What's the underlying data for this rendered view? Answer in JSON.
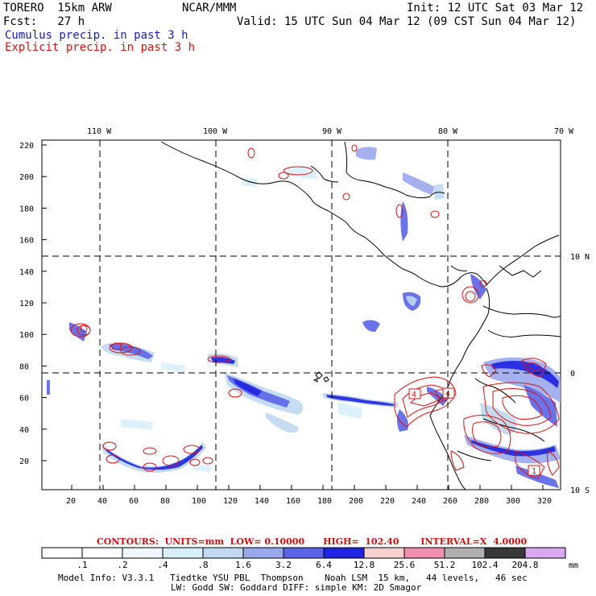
{
  "header": {
    "model": "TORERO  15km ARW",
    "center": "NCAR/MMM",
    "init": "Init: 12 UTC Sat 03 Mar 12",
    "fcst": "Fcst:   27 h",
    "valid": "Valid: 15 UTC Sun 04 Mar 12 (09 CST Sun 04 Mar 12)",
    "field1": "Cumulus precip. in past 3 h",
    "field2": "Explicit precip. in past 3 h"
  },
  "map": {
    "lon_labels": [
      "110 W",
      "100 W",
      "90 W",
      "80 W",
      "70 W"
    ],
    "lat_labels": [
      "10 N",
      "0",
      "10 S"
    ],
    "y_ticks": [
      "220",
      "200",
      "180",
      "160",
      "140",
      "120",
      "100",
      "80",
      "60",
      "40",
      "20"
    ],
    "x_ticks": [
      "20",
      "40",
      "60",
      "80",
      "100",
      "120",
      "140",
      "160",
      "180",
      "200",
      "220",
      "240",
      "260",
      "280",
      "300",
      "320"
    ],
    "contour_labels": [
      "4",
      "4",
      "1"
    ]
  },
  "contours": {
    "text": "CONTOURS:  UNITS=mm  LOW= 0.10000      HIGH=  102.40       INTERVAL=X  4.0000"
  },
  "colorbar": {
    "labels": [
      ".1",
      ".2",
      ".4",
      ".8",
      "1.6",
      "3.2",
      "6.4",
      "12.8",
      "25.6",
      "51.2",
      "102.4",
      "204.8"
    ],
    "unit": "mm",
    "colors": [
      "#ffffff",
      "#ffffff",
      "#eef7ff",
      "#d8f0f8",
      "#c0d8f0",
      "#9aa8ec",
      "#5a64e8",
      "#1e24e0",
      "#f8d0d0",
      "#f090b0",
      "#b0b0b0",
      "#383838",
      "#d8a8f0"
    ]
  },
  "model_info": {
    "line1": "Model Info: V3.3.1   Tiedtke YSU PBL  Thompson    Noah LSM  15 km,   44 levels,   46 sec",
    "line2": "LW: Godd SW: Goddard DIFF: simple KM: 2D Smagor"
  }
}
